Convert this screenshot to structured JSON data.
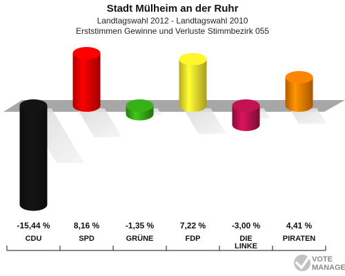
{
  "header": {
    "title": "Stadt Mülheim an der Ruhr",
    "subtitle": "Landtagswahl 2012 - Landtagswahl 2010",
    "subtitle2": "Erststimmen Gewinne und Verluste Stimmbezirk 055"
  },
  "chart_data": {
    "type": "bar",
    "title": "Stadt Mülheim an der Ruhr",
    "subtitle": "Landtagswahl 2012 - Landtagswahl 2010 / Erststimmen Gewinne und Verluste Stimmbezirk 055",
    "categories": [
      "CDU",
      "SPD",
      "GRÜNE",
      "FDP",
      "DIE LINKE",
      "PIRATEN"
    ],
    "values": [
      -15.44,
      8.16,
      -1.35,
      7.22,
      -3.0,
      4.41
    ],
    "value_labels": [
      "-15,44 %",
      "8,16 %",
      "-1,35 %",
      "7,22 %",
      "-3,00 %",
      "4,41 %"
    ],
    "colors": [
      "#111111",
      "#e60000",
      "#33a015",
      "#f2e02a",
      "#b0104a",
      "#f07800"
    ],
    "ylim": [
      -16,
      9
    ],
    "grid": false,
    "legend": "none"
  },
  "logo": {
    "line1": "VOTE",
    "line2": "MANAGER"
  }
}
